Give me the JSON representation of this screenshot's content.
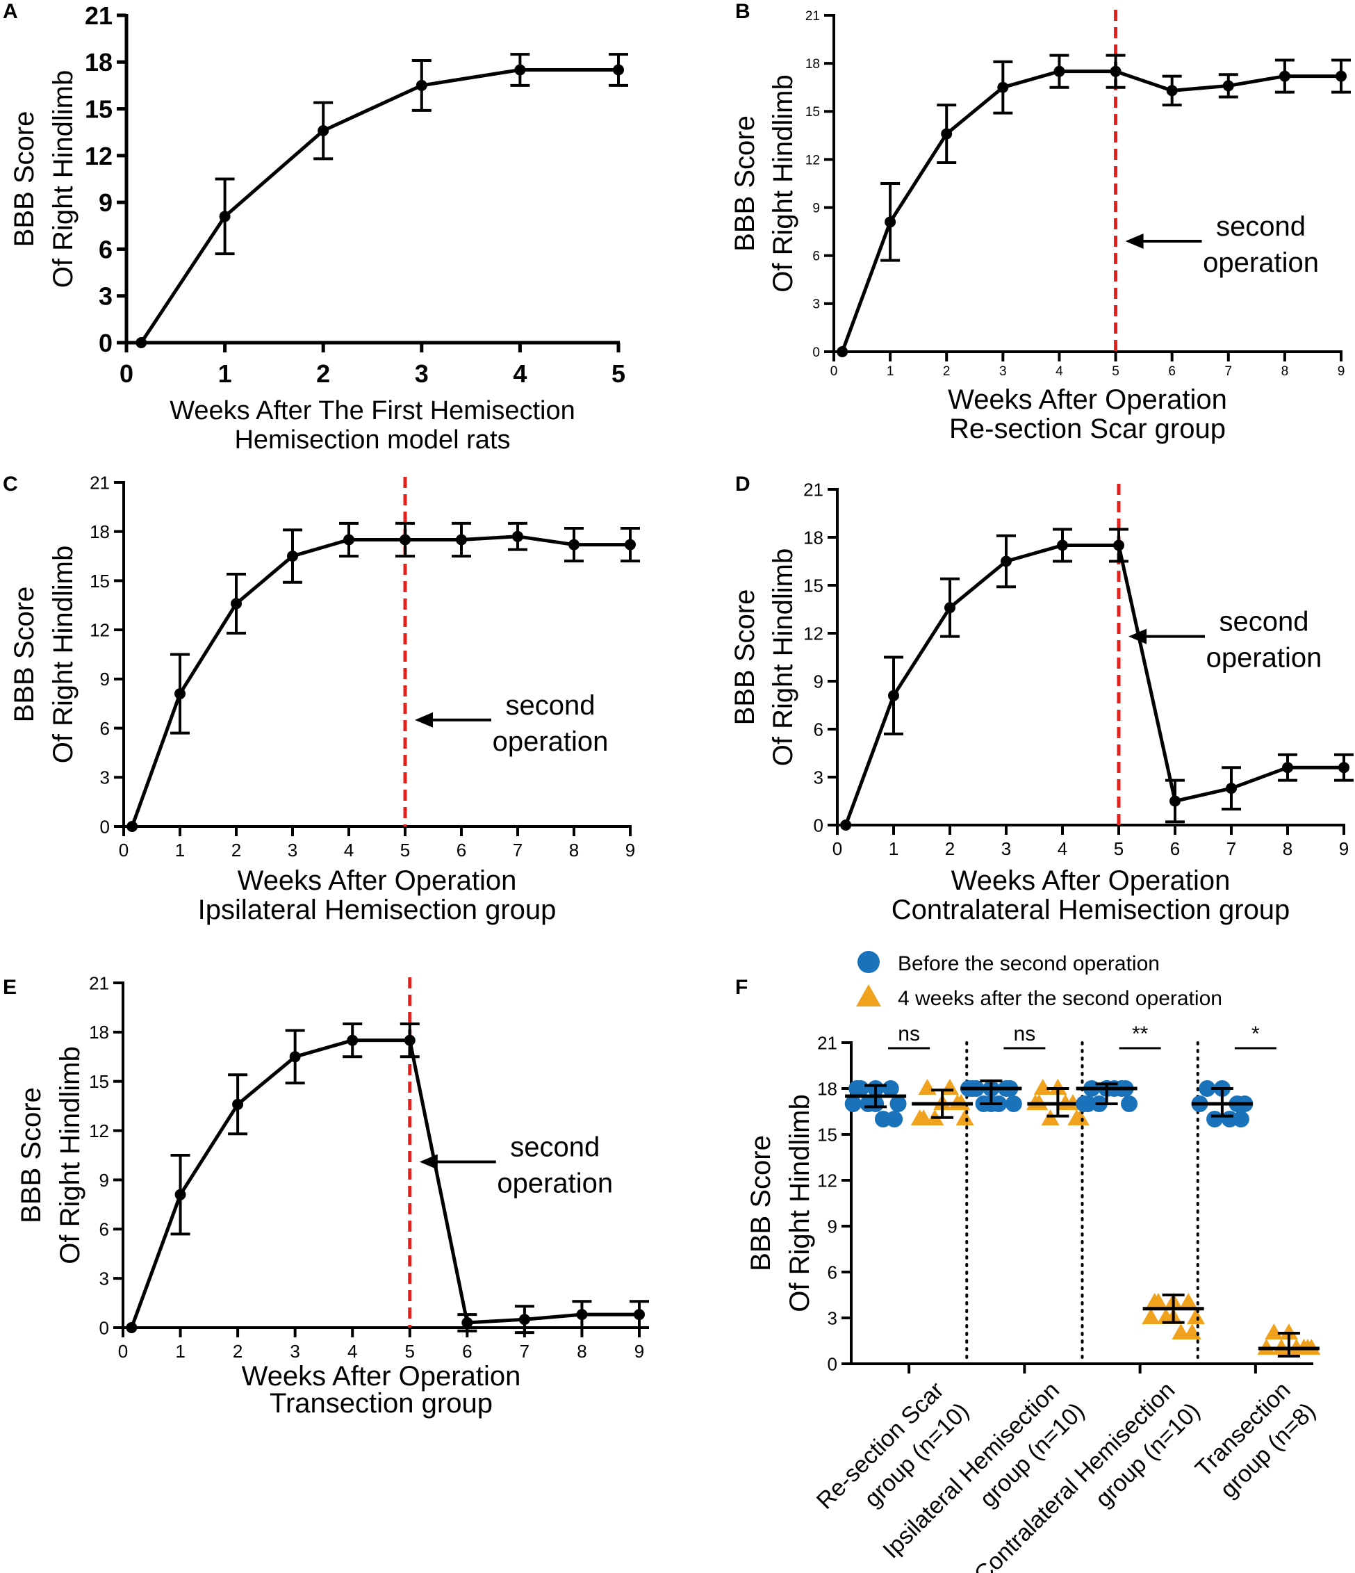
{
  "figure": {
    "colors": {
      "line": "#000000",
      "marker": "#000000",
      "divider": "#e3201b",
      "before": "#1a72bb",
      "after": "#f0a21e"
    }
  },
  "chart_data": [
    {
      "panel": "A",
      "type": "line",
      "xlabel": "Weeks After The First Hemisection",
      "subtitle": "Hemisection model rats",
      "ylabel": [
        "BBB Score",
        "Of Right Hindlimb"
      ],
      "x_ticks": [
        "0",
        "1",
        "2",
        "3",
        "4",
        "5"
      ],
      "y_ticks": [
        "0",
        "3",
        "6",
        "9",
        "12",
        "15",
        "18",
        "21"
      ],
      "xlim": [
        0,
        5
      ],
      "ylim": [
        0,
        21
      ],
      "x": [
        0.15,
        1,
        2,
        3,
        4,
        5
      ],
      "values": [
        0,
        8.1,
        13.6,
        16.5,
        17.5,
        17.5
      ],
      "error": [
        0,
        2.4,
        1.8,
        1.6,
        1.0,
        1.0
      ],
      "divider_week": null,
      "arrow_label": null
    },
    {
      "panel": "B",
      "type": "line",
      "xlabel": "Weeks After Operation",
      "subtitle": "Re-section Scar group",
      "ylabel": [
        "BBB Score",
        "Of Right Hindlimb"
      ],
      "x_ticks": [
        "0",
        "1",
        "2",
        "3",
        "4",
        "5",
        "6",
        "7",
        "8",
        "9"
      ],
      "y_ticks": [
        "0",
        "3",
        "6",
        "9",
        "12",
        "15",
        "18",
        "21"
      ],
      "xlim": [
        0,
        9
      ],
      "ylim": [
        0,
        21
      ],
      "x": [
        0.15,
        1,
        2,
        3,
        4,
        5,
        6,
        7,
        8,
        9
      ],
      "values": [
        0,
        8.1,
        13.6,
        16.5,
        17.5,
        17.5,
        16.3,
        16.6,
        17.2,
        17.2
      ],
      "error": [
        0,
        2.4,
        1.8,
        1.6,
        1.0,
        1.0,
        0.9,
        0.7,
        1.0,
        1.0
      ],
      "divider_week": 5,
      "arrow_label": [
        "second",
        "operation"
      ],
      "arrow_y": 6.9
    },
    {
      "panel": "C",
      "type": "line",
      "xlabel": "Weeks After Operation",
      "subtitle": "Ipsilateral Hemisection group",
      "ylabel": [
        "BBB Score",
        "Of Right Hindlimb"
      ],
      "x_ticks": [
        "0",
        "1",
        "2",
        "3",
        "4",
        "5",
        "6",
        "7",
        "8",
        "9"
      ],
      "y_ticks": [
        "0",
        "3",
        "6",
        "9",
        "12",
        "15",
        "18",
        "21"
      ],
      "xlim": [
        0,
        9
      ],
      "ylim": [
        0,
        21
      ],
      "x": [
        0.15,
        1,
        2,
        3,
        4,
        5,
        6,
        7,
        8,
        9
      ],
      "values": [
        0,
        8.1,
        13.6,
        16.5,
        17.5,
        17.5,
        17.5,
        17.7,
        17.2,
        17.2
      ],
      "error": [
        0,
        2.4,
        1.8,
        1.6,
        1.0,
        1.0,
        1.0,
        0.8,
        1.0,
        1.0
      ],
      "divider_week": 5,
      "arrow_label": [
        "second",
        "operation"
      ],
      "arrow_y": 6.5
    },
    {
      "panel": "D",
      "type": "line",
      "xlabel": "Weeks After Operation",
      "subtitle": "Contralateral Hemisection group",
      "ylabel": [
        "BBB Score",
        "Of Right Hindlimb"
      ],
      "x_ticks": [
        "0",
        "1",
        "2",
        "3",
        "4",
        "5",
        "6",
        "7",
        "8",
        "9"
      ],
      "y_ticks": [
        "0",
        "3",
        "6",
        "9",
        "12",
        "15",
        "18",
        "21"
      ],
      "xlim": [
        0,
        9
      ],
      "ylim": [
        0,
        21
      ],
      "x": [
        0.15,
        1,
        2,
        3,
        4,
        5,
        6,
        7,
        8,
        9
      ],
      "values": [
        0,
        8.1,
        13.6,
        16.5,
        17.5,
        17.5,
        1.5,
        2.3,
        3.6,
        3.6
      ],
      "error": [
        0,
        2.4,
        1.8,
        1.6,
        1.0,
        1.0,
        1.3,
        1.3,
        0.8,
        0.8
      ],
      "divider_week": 5,
      "arrow_label": [
        "second",
        "operation"
      ],
      "arrow_y": 11.8
    },
    {
      "panel": "E",
      "type": "line",
      "xlabel": "Weeks After Operation",
      "subtitle": "Transection group",
      "ylabel": [
        "BBB Score",
        "Of Right Hindlimb"
      ],
      "x_ticks": [
        "0",
        "1",
        "2",
        "3",
        "4",
        "5",
        "6",
        "7",
        "8",
        "9"
      ],
      "y_ticks": [
        "0",
        "3",
        "6",
        "9",
        "12",
        "15",
        "18",
        "21"
      ],
      "xlim": [
        0,
        9
      ],
      "ylim": [
        0,
        21
      ],
      "x": [
        0.15,
        1,
        2,
        3,
        4,
        5,
        6,
        7,
        8,
        9
      ],
      "values": [
        0,
        8.1,
        13.6,
        16.5,
        17.5,
        17.5,
        0.3,
        0.5,
        0.8,
        0.8
      ],
      "error": [
        0,
        2.4,
        1.8,
        1.6,
        1.0,
        1.0,
        0.5,
        0.8,
        0.8,
        0.8
      ],
      "divider_week": 5,
      "arrow_label": [
        "second",
        "operation"
      ],
      "arrow_y": 10.1
    },
    {
      "panel": "F",
      "type": "scatter",
      "ylabel": [
        "BBB Score",
        "Of Right Hindlimb"
      ],
      "y_ticks": [
        "0",
        "3",
        "6",
        "9",
        "12",
        "15",
        "18",
        "21"
      ],
      "ylim": [
        0,
        21
      ],
      "legend": [
        "Before the second operation",
        "4 weeks after the second operation"
      ],
      "groups": [
        {
          "label": [
            "Re-section Scar",
            "group (n=10)"
          ],
          "before": [
            18,
            18,
            18,
            17,
            17,
            17,
            16,
            16,
            18,
            17
          ],
          "before_mean": 17.5,
          "before_err": [
            16.8,
            18.2
          ],
          "after": [
            18,
            17,
            17,
            16,
            16,
            16,
            18,
            17,
            16,
            17
          ],
          "after_mean": 17,
          "after_err": [
            16.1,
            17.9
          ],
          "significance": "ns"
        },
        {
          "label": [
            "Ipsilateral Hemisection",
            "group (n=10)"
          ],
          "before": [
            18,
            18,
            18,
            18,
            17,
            17,
            17,
            18,
            18,
            17
          ],
          "before_mean": 18,
          "before_err": [
            17,
            18.5
          ],
          "after": [
            18,
            18,
            17,
            17,
            16,
            16,
            17,
            16,
            17,
            18
          ],
          "after_mean": 17,
          "after_err": [
            16.2,
            18
          ],
          "significance": "ns"
        },
        {
          "label": [
            "Contralateral Hemisection",
            "group (n=10)"
          ],
          "before": [
            18,
            18,
            18,
            17,
            17,
            17,
            18,
            18,
            17,
            18
          ],
          "before_mean": 18,
          "before_err": [
            17,
            18.3
          ],
          "after": [
            4,
            4,
            4,
            3,
            3,
            3,
            2,
            2,
            4,
            3
          ],
          "after_mean": 3.6,
          "after_err": [
            2.7,
            4.5
          ],
          "significance": "**"
        },
        {
          "label": [
            "Transection",
            "group (n=8)"
          ],
          "before": [
            18,
            18,
            17,
            17,
            17,
            16,
            16,
            16
          ],
          "before_mean": 17,
          "before_err": [
            16.2,
            18
          ],
          "after": [
            2,
            2,
            1,
            1,
            1,
            1,
            1,
            1
          ],
          "after_mean": 1,
          "after_err": [
            0.5,
            2
          ],
          "significance": "*"
        }
      ]
    }
  ]
}
